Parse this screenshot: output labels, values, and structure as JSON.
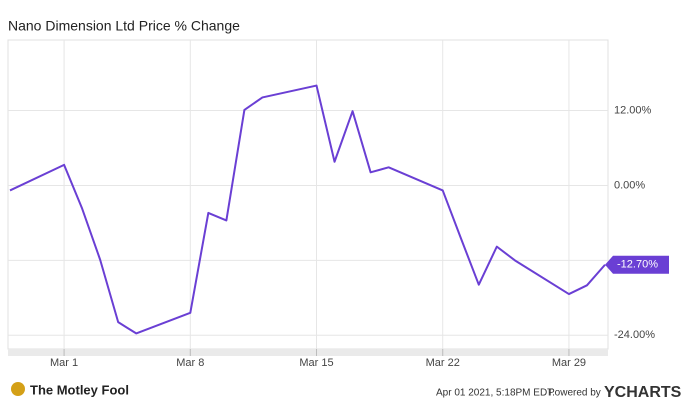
{
  "chart_data": {
    "type": "line",
    "title": "Nano Dimension Ltd Price % Change",
    "x": [
      "Feb 26",
      "Mar 1",
      "Mar 2",
      "Mar 3",
      "Mar 4",
      "Mar 5",
      "Mar 8",
      "Mar 9",
      "Mar 10",
      "Mar 11",
      "Mar 12",
      "Mar 15",
      "Mar 16",
      "Mar 17",
      "Mar 18",
      "Mar 19",
      "Mar 22",
      "Mar 23",
      "Mar 24",
      "Mar 25",
      "Mar 26",
      "Mar 29",
      "Mar 30",
      "Mar 31"
    ],
    "series": [
      {
        "name": "Nano Dimension Ltd",
        "color": "#6a3fd4",
        "values": [
          -0.8,
          3.3,
          -3.7,
          -11.9,
          -21.9,
          -23.7,
          -20.4,
          -4.4,
          -5.6,
          12.1,
          14.1,
          16.0,
          3.8,
          11.9,
          2.1,
          2.9,
          -0.8,
          -8.4,
          -15.9,
          -9.8,
          -12.0,
          -17.4,
          -16.0,
          -12.7
        ],
        "value_labels": [
          null,
          null,
          null,
          null,
          null,
          null,
          null,
          null,
          null,
          null,
          null,
          null,
          null,
          null,
          null,
          null,
          null,
          null,
          null,
          null,
          null,
          null,
          null,
          "-12.70%"
        ]
      }
    ],
    "xlim": [
      "Feb 26",
      "Mar 31"
    ],
    "xticks": [
      "Mar 1",
      "Mar 8",
      "Mar 15",
      "Mar 22",
      "Mar 29"
    ],
    "ylim": [
      -26.2,
      23.3
    ],
    "yticks": [
      {
        "value": 12,
        "label": "12.00%"
      },
      {
        "value": 0,
        "label": "0.00%"
      },
      {
        "value": -12,
        "label": "-12.00%"
      },
      {
        "value": -24,
        "label": "-24.00%"
      }
    ],
    "grid": true
  },
  "footer": {
    "source": "The Motley Fool",
    "timestamp": "Apr 01 2021, 5:18PM EDT.",
    "powered_by": "Powered by",
    "brand": "YCHARTS"
  }
}
